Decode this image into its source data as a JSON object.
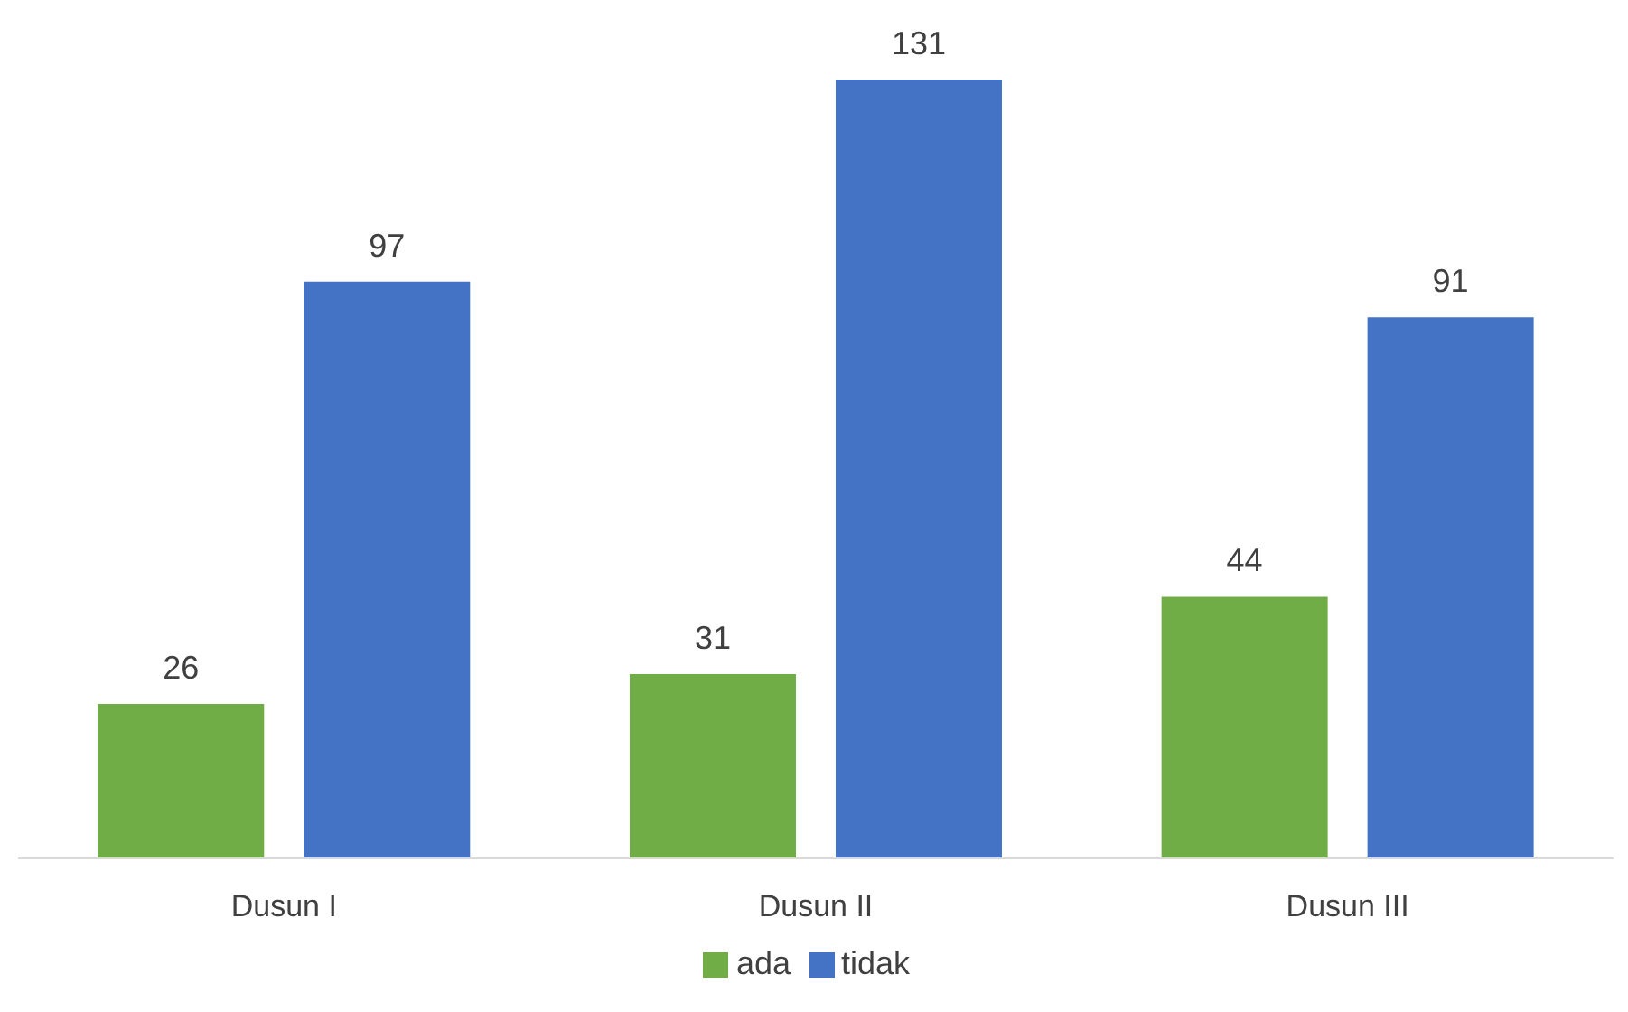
{
  "chart_data": {
    "type": "bar",
    "categories": [
      "Dusun I",
      "Dusun II",
      "Dusun III"
    ],
    "series": [
      {
        "name": "ada",
        "color": "#70ad47",
        "values": [
          26,
          31,
          44
        ]
      },
      {
        "name": "tidak",
        "color": "#4472c4",
        "values": [
          97,
          131,
          91
        ]
      }
    ],
    "data_labels": true,
    "legend": "bottom",
    "grid": false
  }
}
